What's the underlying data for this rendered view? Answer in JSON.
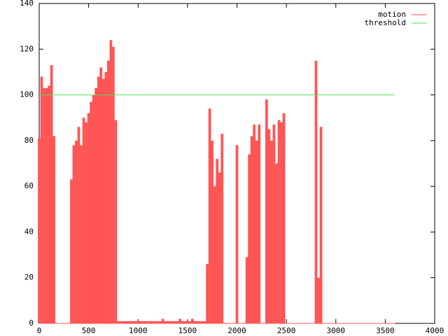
{
  "chart_data": {
    "type": "impulse",
    "xlim": [
      0,
      4000
    ],
    "xticks": [
      0,
      500,
      1000,
      1500,
      2000,
      2500,
      3000,
      3500,
      4000
    ],
    "ylim": [
      0,
      140
    ],
    "yticks": [
      0,
      20,
      40,
      60,
      80,
      100,
      120,
      140
    ],
    "legend": "upper right",
    "series": [
      {
        "name": "motion",
        "color": "#ff5555",
        "style": "impulses",
        "x": [
          0,
          25,
          50,
          75,
          100,
          125,
          150,
          175,
          200,
          225,
          250,
          275,
          300,
          325,
          350,
          375,
          400,
          425,
          450,
          475,
          500,
          525,
          550,
          575,
          600,
          625,
          650,
          675,
          700,
          725,
          750,
          775,
          800,
          825,
          850,
          875,
          900,
          925,
          950,
          975,
          1000,
          1025,
          1050,
          1075,
          1100,
          1125,
          1150,
          1175,
          1200,
          1225,
          1250,
          1275,
          1300,
          1325,
          1350,
          1375,
          1400,
          1425,
          1450,
          1475,
          1500,
          1525,
          1550,
          1575,
          1600,
          1625,
          1650,
          1675,
          1700,
          1725,
          1750,
          1775,
          1800,
          1825,
          1850,
          1875,
          1900,
          1925,
          1950,
          1975,
          2000,
          2025,
          2050,
          2075,
          2100,
          2125,
          2150,
          2175,
          2200,
          2225,
          2250,
          2275,
          2300,
          2325,
          2350,
          2375,
          2400,
          2425,
          2450,
          2475,
          2500,
          2525,
          2550,
          2575,
          2600,
          2625,
          2650,
          2675,
          2700,
          2725,
          2750,
          2775,
          2800,
          2825,
          2850,
          2875,
          2900,
          2925,
          2950,
          2975,
          3000,
          3025,
          3050,
          3075,
          3100,
          3125,
          3150,
          3175,
          3200,
          3225,
          3250,
          3275,
          3300,
          3325,
          3350,
          3375,
          3400,
          3425,
          3450,
          3475,
          3500,
          3525,
          3550,
          3575,
          3600
        ],
        "values": [
          81,
          108,
          103,
          103,
          104,
          113,
          82,
          0,
          0,
          0,
          0,
          0,
          0,
          63,
          78,
          80,
          86,
          78,
          90,
          88,
          92,
          97,
          100,
          103,
          108,
          112,
          107,
          110,
          115,
          124,
          121,
          89,
          1,
          1,
          1,
          1,
          1,
          1,
          1,
          1,
          1,
          1,
          1,
          1,
          1,
          1,
          1,
          1,
          1,
          1,
          2,
          1,
          1,
          1,
          1,
          1,
          1,
          2,
          1,
          1,
          1,
          1,
          2,
          1,
          1,
          1,
          1,
          1,
          26,
          94,
          80,
          60,
          72,
          66,
          83,
          0,
          0,
          0,
          0,
          0,
          78,
          0,
          0,
          0,
          29,
          74,
          82,
          87,
          80,
          87,
          0,
          0,
          98,
          85,
          80,
          87,
          70,
          89,
          88,
          92,
          0,
          0,
          0,
          0,
          0,
          0,
          0,
          0,
          0,
          0,
          0,
          0,
          115,
          20,
          86,
          0,
          0,
          0,
          0,
          0,
          0,
          0,
          0,
          0,
          0,
          0,
          0,
          0,
          0,
          0,
          0,
          0,
          0,
          0,
          0,
          0,
          0,
          0,
          0,
          0,
          0,
          0,
          0,
          0,
          0
        ]
      },
      {
        "name": "threshold",
        "color": "#55dd55",
        "style": "line",
        "x": [
          0,
          3600
        ],
        "values": [
          100,
          100
        ]
      }
    ]
  }
}
